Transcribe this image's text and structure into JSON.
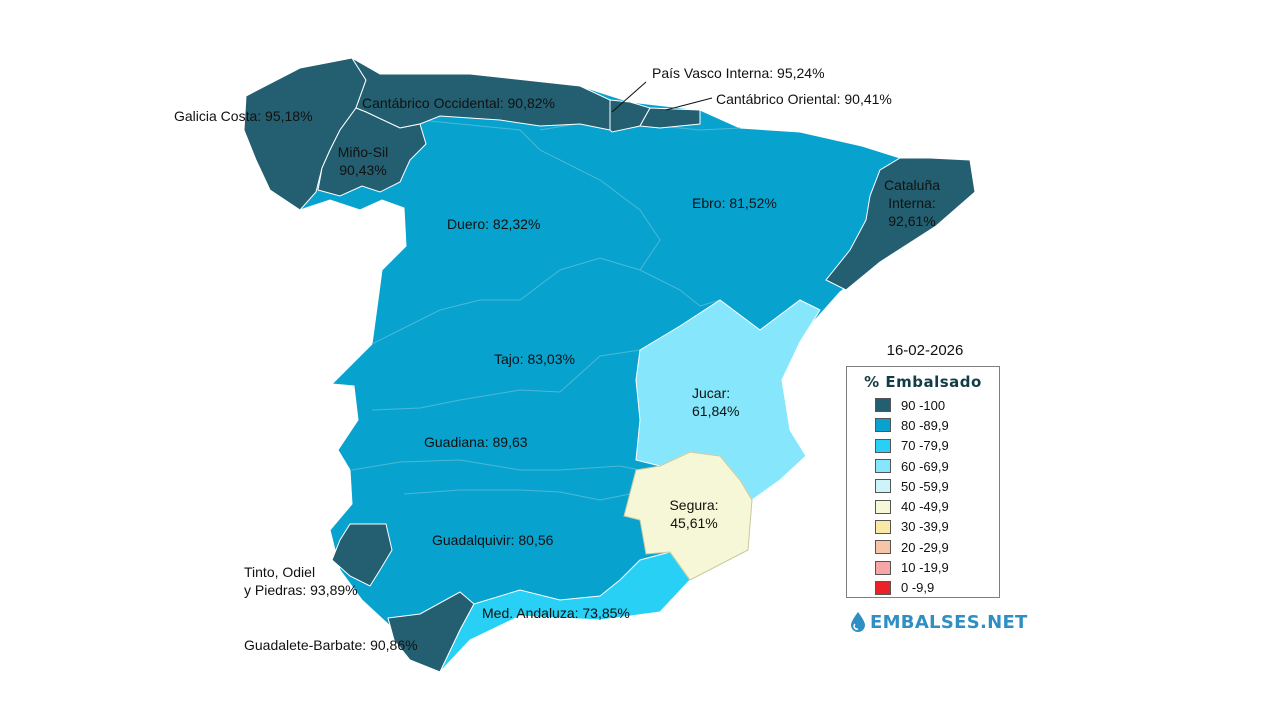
{
  "date": "16-02-2026",
  "legend": {
    "title": "% Embalsado",
    "items": [
      {
        "label": "90 -100",
        "color": "#235f70"
      },
      {
        "label": "80 -89,9",
        "color": "#08a2cf"
      },
      {
        "label": "70 -79,9",
        "color": "#27d0f4"
      },
      {
        "label": "60 -69,9",
        "color": "#86e6fb"
      },
      {
        "label": "50 -59,9",
        "color": "#cdf3fb"
      },
      {
        "label": "40 -49,9",
        "color": "#f5f7d6"
      },
      {
        "label": "30 -39,9",
        "color": "#fae8a7"
      },
      {
        "label": "20 -29,9",
        "color": "#f7c4a7"
      },
      {
        "label": "10 -19,9",
        "color": "#f6a6a6"
      },
      {
        "label": "0 -9,9",
        "color": "#ea2226"
      }
    ]
  },
  "brand": "EMBALSES.NET",
  "basins": {
    "galicia_costa": "Galicia Costa: 95,18%",
    "cantabrico_occidental": "Cantábrico Occidental: 90,82%",
    "pais_vasco_interna": "País Vasco Interna: 95,24%",
    "cantabrico_oriental": "Cantábrico Oriental: 90,41%",
    "mino_sil_name": "Miño-Sil",
    "mino_sil_value": "90,43%",
    "duero": "Duero: 82,32%",
    "ebro": "Ebro: 81,52%",
    "cataluna_name_1": "Cataluña",
    "cataluna_name_2": "Interna:",
    "cataluna_value": "92,61%",
    "tajo": "Tajo: 83,03%",
    "jucar_name": "Jucar:",
    "jucar_value": "61,84%",
    "guadiana": "Guadiana: 89,63",
    "segura_name": "Segura:",
    "segura_value": "45,61%",
    "guadalquivir": "Guadalquivir: 80,56",
    "tinto_line_1": "Tinto, Odiel",
    "tinto_line_2": "y Piedras: 93,89%",
    "med_andaluza": "Med. Andaluza: 73,85%",
    "guadalete_barbate": "Guadalete-Barbate: 90,86%"
  }
}
